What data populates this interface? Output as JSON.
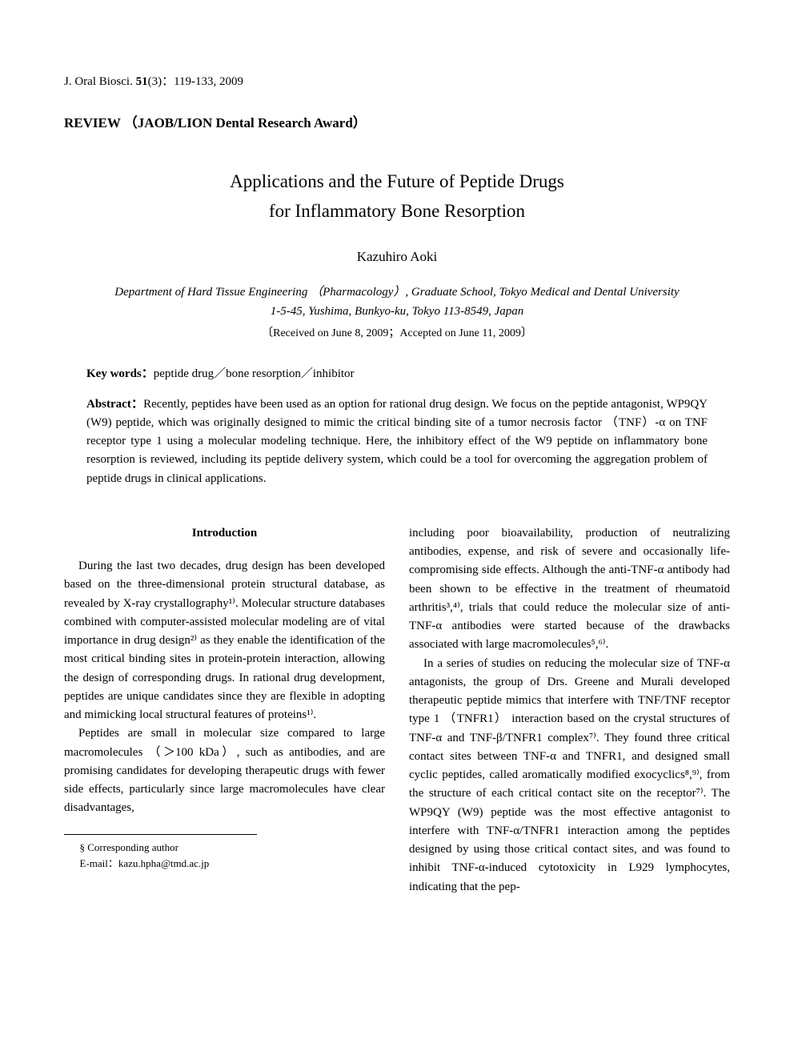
{
  "journal": {
    "name": "J. Oral Biosci.",
    "volume": "51",
    "issue": "(3)",
    "pages": "119-133, 2009"
  },
  "review_heading": "REVIEW （JAOB/LION Dental Research Award）",
  "title_line1": "Applications and the Future of Peptide Drugs",
  "title_line2": "for Inflammatory Bone Resorption",
  "author": "Kazuhiro Aoki",
  "affiliation": "Department of Hard Tissue Engineering （Pharmacology）, Graduate School, Tokyo Medical and Dental University",
  "address": "1-5-45, Yushima, Bunkyo-ku, Tokyo 113-8549, Japan",
  "received": "〔Received on June 8, 2009；Accepted on June 11, 2009〕",
  "keywords_label": "Key words：",
  "keywords_value": "peptide drug／bone resorption／inhibitor",
  "abstract_label": "Abstract：",
  "abstract_text": "Recently, peptides have been used as an option for rational drug design. We focus on the peptide antagonist, WP9QY (W9) peptide, which was originally designed to mimic the critical binding site of a tumor necrosis factor （TNF）-α on TNF receptor type 1 using a molecular modeling technique. Here, the inhibitory effect of the W9 peptide on inflammatory bone resorption is reviewed, including its peptide delivery system, which could be a tool for overcoming the aggregation problem of peptide drugs in clinical applications.",
  "intro_heading": "Introduction",
  "col1_para1": "During the last two decades, drug design has been developed based on the three-dimensional protein structural database, as revealed by X-ray crystallography¹⁾. Molecular structure databases combined with computer-assisted molecular modeling are of vital importance in drug design²⁾ as they enable the identification of the most critical binding sites in protein-protein interaction, allowing the design of corresponding drugs. In rational drug development, peptides are unique candidates since they are flexible in adopting and mimicking local structural features of proteins¹⁾.",
  "col1_para2": "Peptides are small in molecular size compared to large macromolecules （＞100 kDa）, such as antibodies, and are promising candidates for developing therapeutic drugs with fewer side effects, particularly since large macromolecules have clear disadvantages,",
  "footnote_marker": "§",
  "footnote_label": "Corresponding author",
  "footnote_email_label": "E-mail：",
  "footnote_email": "kazu.hpha@tmd.ac.jp",
  "col2_para1": "including poor bioavailability, production of neutralizing antibodies, expense, and risk of severe and occasionally life-compromising side effects. Although the anti-TNF-α antibody had been shown to be effective in the treatment of rheumatoid arthritis³,⁴⁾, trials that could reduce the molecular size of anti-TNF-α antibodies were started because of the drawbacks associated with large macromolecules⁵,⁶⁾.",
  "col2_para2": "In a series of studies on reducing the molecular size of TNF-α antagonists, the group of Drs. Greene and Murali developed therapeutic peptide mimics that interfere with TNF/TNF receptor type 1 （TNFR1） interaction based on the crystal structures of TNF-α and TNF-β/TNFR1 complex⁷⁾. They found three critical contact sites between TNF-α and TNFR1, and designed small cyclic peptides, called aromatically modified exocyclics⁸,⁹⁾, from the structure of each critical contact site on the receptor⁷⁾. The WP9QY (W9) peptide was the most effective antagonist to interfere with TNF-α/TNFR1 interaction among the peptides designed by using those critical contact sites, and was found to inhibit TNF-α-induced cytotoxicity in L929 lymphocytes, indicating that the pep-"
}
